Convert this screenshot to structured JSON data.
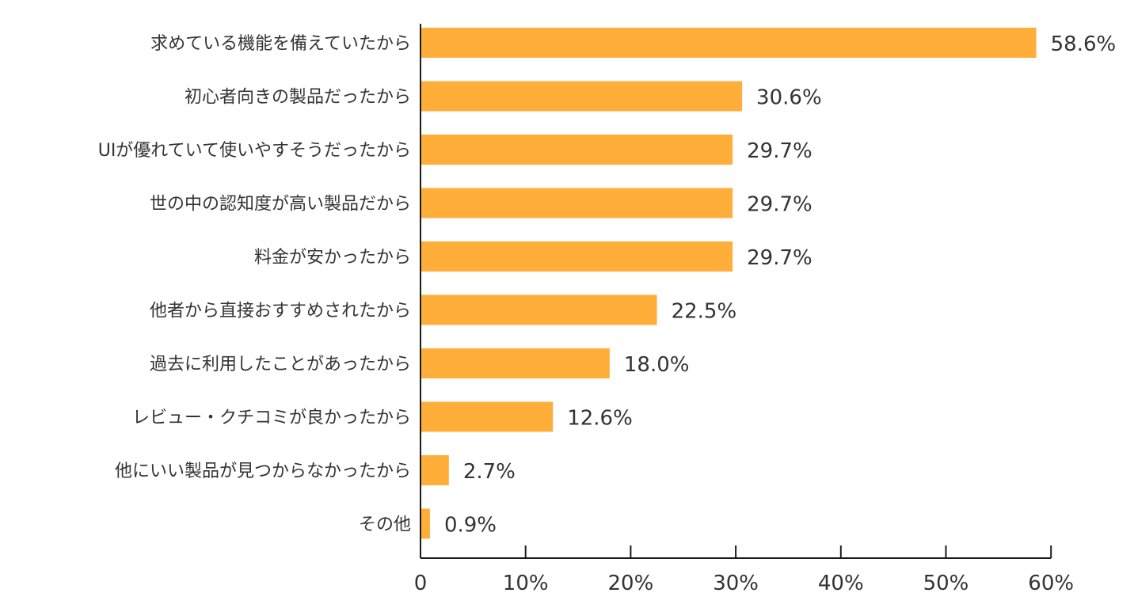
{
  "chart_data": {
    "type": "bar",
    "orientation": "horizontal",
    "categories": [
      "求めている機能を備えていたから",
      "初心者向きの製品だったから",
      "UIが優れていて使いやすそうだったから",
      "世の中の認知度が高い製品だから",
      "料金が安かったから",
      "他者から直接おすすめされたから",
      "過去に利用したことがあったから",
      "レビュー・クチコミが良かったから",
      "他にいい製品が見つからなかったから",
      "その他"
    ],
    "values": [
      58.6,
      30.6,
      29.7,
      29.7,
      29.7,
      22.5,
      18.0,
      12.6,
      2.7,
      0.9
    ],
    "value_labels": [
      "58.6%",
      "30.6%",
      "29.7%",
      "29.7%",
      "29.7%",
      "22.5%",
      "18.0%",
      "12.6%",
      "2.7%",
      "0.9%"
    ],
    "xlim": [
      0,
      60
    ],
    "ticks": [
      0,
      10,
      20,
      30,
      40,
      50,
      60
    ],
    "tick_labels": [
      "0",
      "10%",
      "20%",
      "30%",
      "40%",
      "50%",
      "60%"
    ],
    "title": "",
    "xlabel": "",
    "ylabel": "",
    "grid": false,
    "bar_color": "#FFAE3A",
    "axis_color": "#1a1a1a",
    "text_color": "#333333"
  }
}
